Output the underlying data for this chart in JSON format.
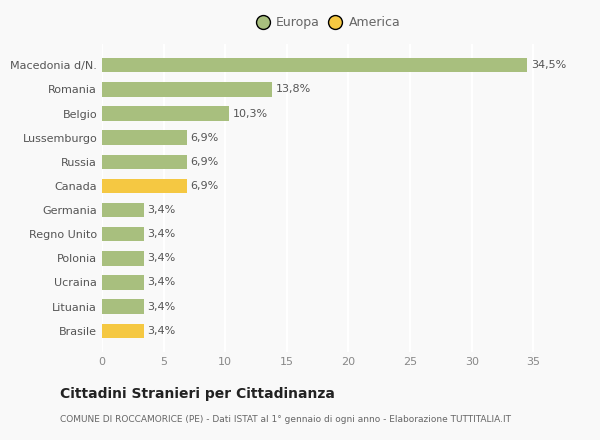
{
  "categories": [
    "Brasile",
    "Lituania",
    "Ucraina",
    "Polonia",
    "Regno Unito",
    "Germania",
    "Canada",
    "Russia",
    "Lussemburgo",
    "Belgio",
    "Romania",
    "Macedonia d/N."
  ],
  "values": [
    3.4,
    3.4,
    3.4,
    3.4,
    3.4,
    3.4,
    6.9,
    6.9,
    6.9,
    10.3,
    13.8,
    34.5
  ],
  "colors": [
    "#f5c842",
    "#a8bf7e",
    "#a8bf7e",
    "#a8bf7e",
    "#a8bf7e",
    "#a8bf7e",
    "#f5c842",
    "#a8bf7e",
    "#a8bf7e",
    "#a8bf7e",
    "#a8bf7e",
    "#a8bf7e"
  ],
  "labels": [
    "3,4%",
    "3,4%",
    "3,4%",
    "3,4%",
    "3,4%",
    "3,4%",
    "6,9%",
    "6,9%",
    "6,9%",
    "10,3%",
    "13,8%",
    "34,5%"
  ],
  "legend": [
    {
      "label": "Europa",
      "color": "#a8bf7e"
    },
    {
      "label": "America",
      "color": "#f5c842"
    }
  ],
  "xlim": [
    0,
    37
  ],
  "xticks": [
    0,
    5,
    10,
    15,
    20,
    25,
    30,
    35
  ],
  "title": "Cittadini Stranieri per Cittadinanza",
  "subtitle": "COMUNE DI ROCCAMORICE (PE) - Dati ISTAT al 1° gennaio di ogni anno - Elaborazione TUTTITALIA.IT",
  "bg_color": "#f9f9f9",
  "grid_color": "#ffffff",
  "bar_edge_color": "none"
}
